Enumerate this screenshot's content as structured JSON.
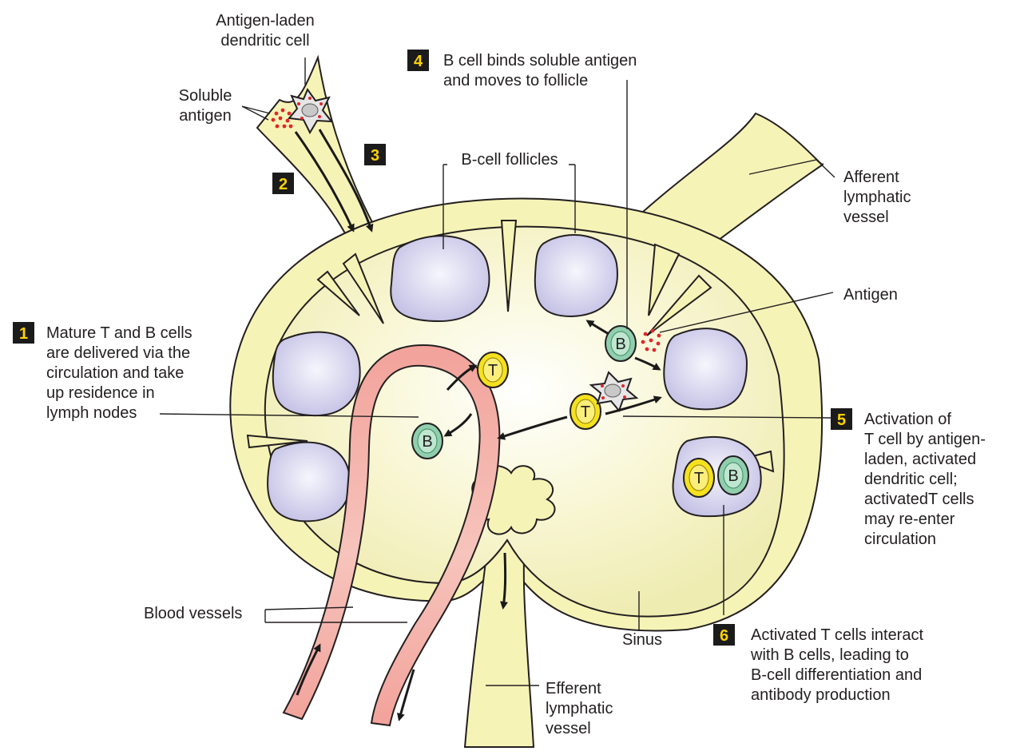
{
  "labels": {
    "antigen_laden_dc_line1": "Antigen-laden",
    "antigen_laden_dc_line2": "dendritic cell",
    "soluble_antigen_line1": "Soluble",
    "soluble_antigen_line2": "antigen",
    "b_cell_follicles": "B-cell follicles",
    "afferent_line1": "Afferent",
    "afferent_line2": "lymphatic",
    "afferent_line3": "vessel",
    "antigen": "Antigen",
    "blood_vessels": "Blood vessels",
    "sinus": "Sinus",
    "efferent_line1": "Efferent",
    "efferent_line2": "lymphatic",
    "efferent_line3": "vessel"
  },
  "steps": [
    {
      "number": "1",
      "lines": [
        "Mature T and B cells",
        "are delivered via the",
        "circulation and take",
        "up residence in",
        "lymph nodes"
      ]
    },
    {
      "number": "2",
      "lines": []
    },
    {
      "number": "3",
      "lines": []
    },
    {
      "number": "4",
      "lines": [
        "B cell binds soluble antigen",
        "and moves to follicle"
      ]
    },
    {
      "number": "5",
      "lines": [
        "Activation of",
        "T cell by antigen-",
        "laden, activated",
        "dendritic cell;",
        "activatedT cells",
        "may re-enter",
        "circulation"
      ]
    },
    {
      "number": "6",
      "lines": [
        "Activated T cells interact",
        "with B cells, leading to",
        "B-cell differentiation and",
        "antibody production"
      ]
    }
  ],
  "cells": {
    "t_letter": "T",
    "b_letter": "B"
  },
  "colors": {
    "lymph_fill": "#f6f3b6",
    "inner_center": "#ffffff",
    "follicle": "#cfcce9",
    "t_cell": "#f5e11e",
    "b_cell": "#8fcfae",
    "blood_vessel": "#f2a29a",
    "antigen_dot": "#e0262b",
    "step_box": "#1b1b1b",
    "step_number": "#ffd200"
  }
}
